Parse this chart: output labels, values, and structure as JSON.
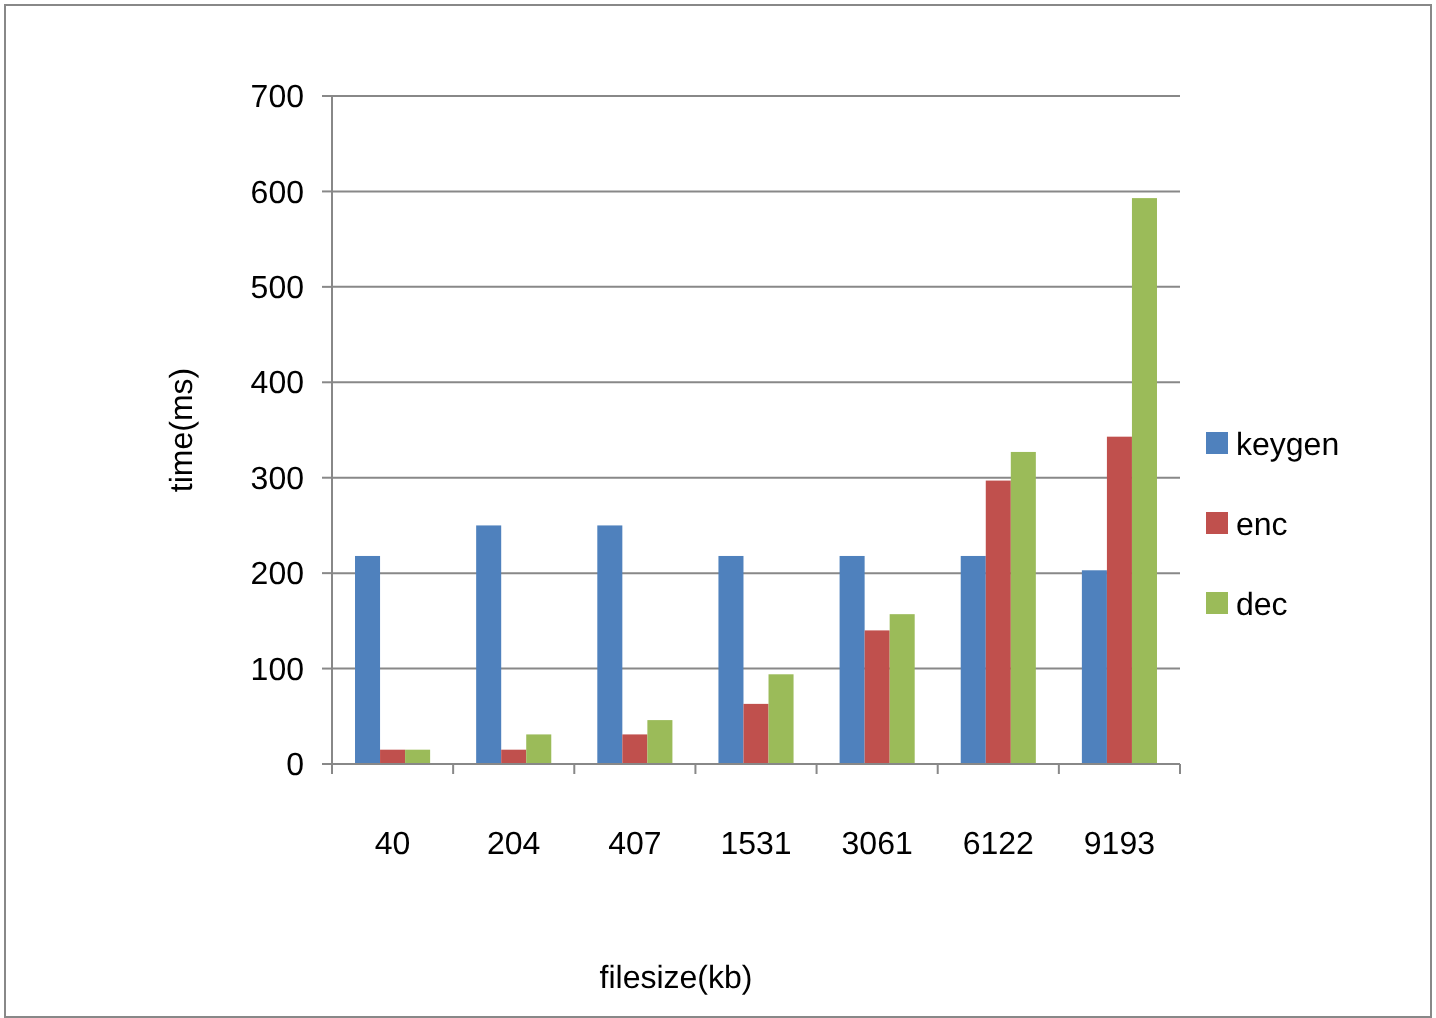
{
  "chart_data": {
    "type": "bar",
    "xlabel": "filesize(kb)",
    "ylabel": "time(ms)",
    "categories": [
      "40",
      "204",
      "407",
      "1531",
      "3061",
      "6122",
      "9193"
    ],
    "series": [
      {
        "name": "keygen",
        "color": "#4f81bd",
        "values": [
          218,
          250,
          250,
          218,
          218,
          218,
          203
        ]
      },
      {
        "name": "enc",
        "color": "#c0504d",
        "values": [
          15,
          15,
          31,
          63,
          140,
          297,
          343
        ]
      },
      {
        "name": "dec",
        "color": "#9bbb59",
        "values": [
          15,
          31,
          46,
          94,
          157,
          327,
          593
        ]
      }
    ],
    "ylim": [
      0,
      700
    ],
    "yticks": [
      0,
      100,
      200,
      300,
      400,
      500,
      600,
      700
    ],
    "grid": "y",
    "legend": "right"
  }
}
